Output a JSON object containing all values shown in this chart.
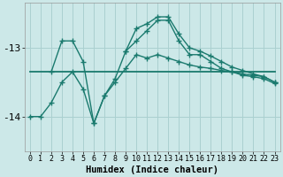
{
  "background_color": "#cce8e8",
  "grid_color": "#aad0d0",
  "line_color": "#1a7a6e",
  "line_width": 1.0,
  "marker": "+",
  "marker_size": 4,
  "xlabel": "Humidex (Indice chaleur)",
  "xlabel_fontsize": 7.5,
  "ytick_fontsize": 8,
  "xtick_fontsize": 6,
  "xlim": [
    -0.5,
    23.5
  ],
  "ylim": [
    -14.5,
    -12.35
  ],
  "yticks": [
    -14,
    -13
  ],
  "xticks": [
    0,
    1,
    2,
    3,
    4,
    5,
    6,
    7,
    8,
    9,
    10,
    11,
    12,
    13,
    14,
    15,
    16,
    17,
    18,
    19,
    20,
    21,
    22,
    23
  ],
  "series": [
    {
      "x": [
        0,
        23
      ],
      "y": [
        -13.35,
        -13.35
      ],
      "has_markers": false
    },
    {
      "x": [
        2,
        3,
        4,
        5,
        6,
        7,
        8,
        9,
        10,
        11,
        12,
        13,
        14,
        15,
        16,
        17,
        18,
        19,
        20,
        21,
        22,
        23
      ],
      "y": [
        -13.35,
        -12.9,
        -12.9,
        -13.2,
        -14.1,
        -13.7,
        -13.5,
        -13.3,
        -13.1,
        -13.15,
        -13.1,
        -13.15,
        -13.2,
        -13.25,
        -13.28,
        -13.3,
        -13.33,
        -13.35,
        -13.38,
        -13.4,
        -13.42,
        -13.5
      ],
      "has_markers": true
    },
    {
      "x": [
        0,
        1,
        2,
        3,
        4,
        5,
        6,
        7,
        8,
        9,
        10,
        11,
        12,
        13,
        14,
        15,
        16,
        17,
        18,
        19,
        20,
        21,
        22,
        23
      ],
      "y": [
        -14.0,
        -14.0,
        -13.8,
        -13.5,
        -13.35,
        -13.6,
        -14.1,
        -13.7,
        -13.45,
        -13.05,
        -12.9,
        -12.75,
        -12.6,
        -12.6,
        -12.9,
        -13.1,
        -13.1,
        -13.2,
        -13.3,
        -13.35,
        -13.4,
        -13.42,
        -13.45,
        -13.52
      ],
      "has_markers": true
    },
    {
      "x": [
        9,
        10,
        11,
        12,
        13,
        14,
        15,
        16,
        17,
        18,
        19,
        20,
        21,
        22,
        23
      ],
      "y": [
        -13.05,
        -12.72,
        -12.65,
        -12.55,
        -12.55,
        -12.8,
        -13.0,
        -13.05,
        -13.12,
        -13.2,
        -13.28,
        -13.33,
        -13.38,
        -13.42,
        -13.5
      ],
      "has_markers": true
    }
  ]
}
